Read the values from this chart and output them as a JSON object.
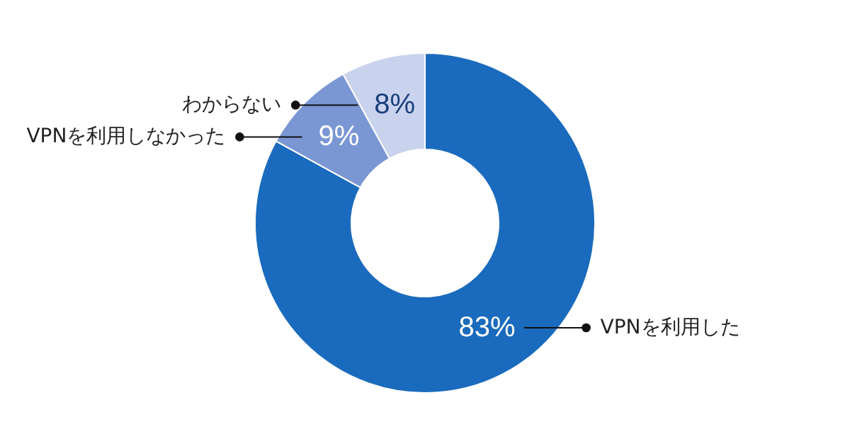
{
  "chart_data": {
    "type": "donut",
    "categories": [
      "VPNを利用した",
      "VPNを利用しなかった",
      "わからない"
    ],
    "values": [
      83,
      9,
      8
    ],
    "colors": [
      "#1a6bbd",
      "#7a97d4",
      "#c9d3ee"
    ],
    "value_labels": [
      "83%",
      "9%",
      "8%"
    ]
  }
}
